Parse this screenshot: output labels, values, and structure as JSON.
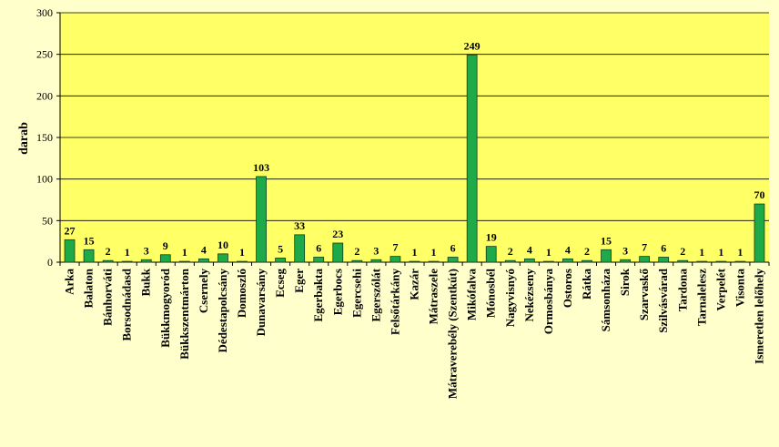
{
  "chart_data": {
    "type": "bar",
    "title": "",
    "xlabel": "",
    "ylabel": "darab",
    "ylim": [
      0,
      300
    ],
    "yticks": [
      0,
      50,
      100,
      150,
      200,
      250,
      300
    ],
    "grid": true,
    "legend": "none",
    "colors": {
      "background": "#ffffcc",
      "plot_area": "#ffff66",
      "bar_fill": "#1faa4a",
      "bar_stroke": "#0d3f1c",
      "gridline": "#000000"
    },
    "categories": [
      "Arka",
      "Balaton",
      "Bánhorváti",
      "Borsodnádasd",
      "Bukk",
      "Bükkmogyoród",
      "Bükkszentmárton",
      "Csernely",
      "Dédestapolcsány",
      "Domoszló",
      "Dunavarsány",
      "Ecseg",
      "Eger",
      "Egerbakta",
      "Egerbocs",
      "Egercsehi",
      "Egerszólát",
      "Felsőtárkány",
      "Kazár",
      "Mátraszele",
      "Mátraverebély (Szentkút)",
      "Mikófalva",
      "Mónosbél",
      "Nagyvisnyó",
      "Nekézseny",
      "Ormosbánya",
      "Ostoros",
      "Rátka",
      "Sámsonháza",
      "Sirok",
      "Szarvaskő",
      "Szilvásvárad",
      "Tardona",
      "Tarnalelesz",
      "Verpelét",
      "Visonta",
      "Ismeretlen lelőhely"
    ],
    "values": [
      27,
      15,
      2,
      1,
      3,
      9,
      1,
      4,
      10,
      1,
      103,
      5,
      33,
      6,
      23,
      2,
      3,
      7,
      1,
      1,
      6,
      249,
      19,
      2,
      4,
      1,
      4,
      2,
      15,
      3,
      7,
      6,
      2,
      1,
      1,
      1,
      70
    ]
  }
}
